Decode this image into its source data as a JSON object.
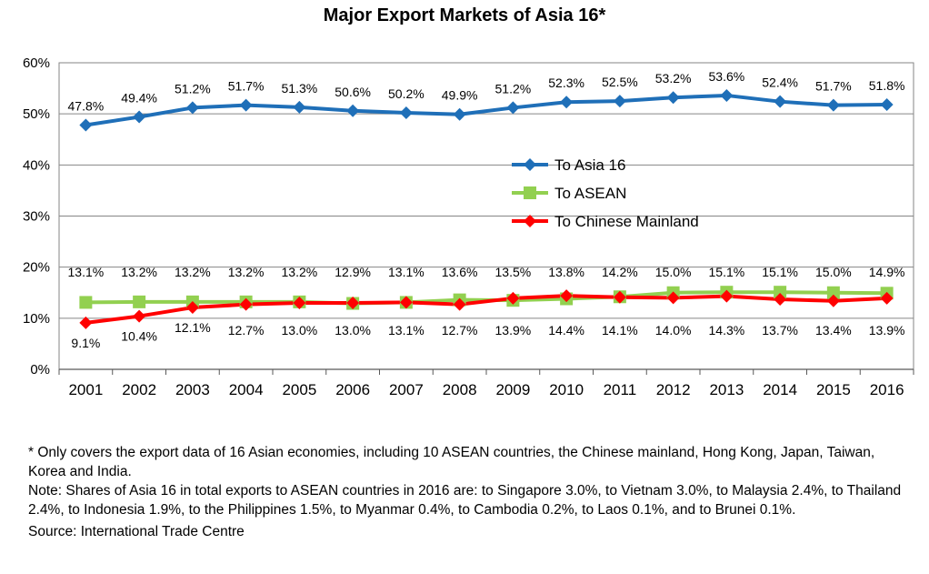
{
  "chart_data": {
    "type": "line",
    "title": "Major Export Markets of Asia 16*",
    "xlabel": "",
    "ylabel": "",
    "ylim": [
      0,
      60
    ],
    "y_ticks": [
      "0%",
      "10%",
      "20%",
      "30%",
      "40%",
      "50%",
      "60%"
    ],
    "grid": true,
    "legend_position": "center-right",
    "categories": [
      "2001",
      "2002",
      "2003",
      "2004",
      "2005",
      "2006",
      "2007",
      "2008",
      "2009",
      "2010",
      "2011",
      "2012",
      "2013",
      "2014",
      "2015",
      "2016"
    ],
    "series": [
      {
        "name": "To Asia 16",
        "color": "#1F6FB8",
        "marker": "diamond",
        "values": [
          47.8,
          49.4,
          51.2,
          51.7,
          51.3,
          50.6,
          50.2,
          49.9,
          51.2,
          52.3,
          52.5,
          53.2,
          53.6,
          52.4,
          51.7,
          51.8
        ],
        "labels": [
          "47.8%",
          "49.4%",
          "51.2%",
          "51.7%",
          "51.3%",
          "50.6%",
          "50.2%",
          "49.9%",
          "51.2%",
          "52.3%",
          "52.5%",
          "53.2%",
          "53.6%",
          "52.4%",
          "51.7%",
          "51.8%"
        ]
      },
      {
        "name": "To ASEAN",
        "color": "#92D050",
        "marker": "square",
        "values": [
          13.1,
          13.2,
          13.2,
          13.2,
          13.2,
          12.9,
          13.1,
          13.6,
          13.5,
          13.8,
          14.2,
          15.0,
          15.1,
          15.1,
          15.0,
          14.9
        ],
        "labels": [
          "13.1%",
          "13.2%",
          "13.2%",
          "13.2%",
          "13.2%",
          "12.9%",
          "13.1%",
          "13.6%",
          "13.5%",
          "13.8%",
          "14.2%",
          "15.0%",
          "15.1%",
          "15.1%",
          "15.0%",
          "14.9%"
        ]
      },
      {
        "name": "To Chinese Mainland",
        "color": "#FF0000",
        "marker": "diamond",
        "values": [
          9.1,
          10.4,
          12.1,
          12.7,
          13.0,
          13.0,
          13.1,
          12.7,
          13.9,
          14.4,
          14.1,
          14.0,
          14.3,
          13.7,
          13.4,
          13.9
        ],
        "labels": [
          "9.1%",
          "10.4%",
          "12.1%",
          "12.7%",
          "13.0%",
          "13.0%",
          "13.1%",
          "12.7%",
          "13.9%",
          "14.4%",
          "14.1%",
          "14.0%",
          "14.3%",
          "13.7%",
          "13.4%",
          "13.9%"
        ]
      }
    ]
  },
  "notes": {
    "footnote": "* Only covers the export data of 16 Asian economies, including 10 ASEAN countries, the Chinese mainland, Hong Kong, Japan, Taiwan, Korea and India.",
    "note": "Note: Shares of Asia 16 in total exports to ASEAN countries in 2016 are: to Singapore 3.0%, to Vietnam 3.0%, to Malaysia 2.4%, to Thailand 2.4%, to Indonesia 1.9%, to the Philippines 1.5%, to Myanmar 0.4%, to Cambodia 0.2%, to Laos 0.1%, and to Brunei 0.1%.",
    "source": "Source: International Trade Centre"
  }
}
